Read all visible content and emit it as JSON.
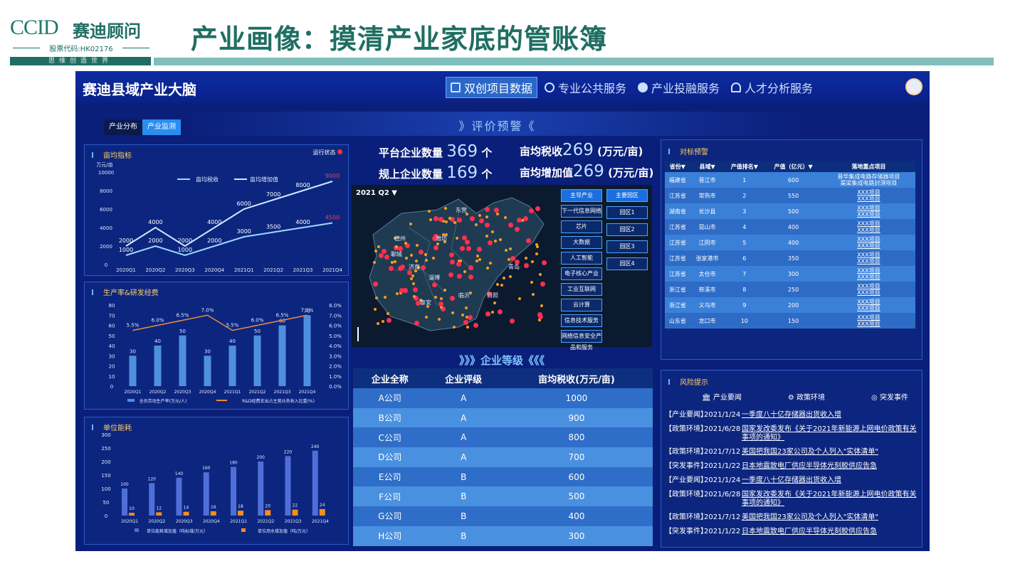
{
  "brand": {
    "logo": "CCID",
    "name_cn": "赛迪顾问",
    "stock": "股票代码:HK02176",
    "slogan": "思维创造世界"
  },
  "slide_title": "产业画像：摸清产业家底的管账簿",
  "dashboard": {
    "title": "赛迪县域产业大脑",
    "nav": [
      {
        "label": "双创项目数据",
        "icon": "book-icon",
        "active": true
      },
      {
        "label": "专业公共服务",
        "icon": "bulb-icon"
      },
      {
        "label": "产业投融服务",
        "icon": "pie-icon"
      },
      {
        "label": "人才分析服务",
        "icon": "user-icon"
      }
    ],
    "tabs": [
      {
        "label": "产业分布"
      },
      {
        "label": "产业监测",
        "active": true
      }
    ],
    "section_warning": "》评价预警《",
    "kpis": [
      {
        "label": "平台企业数量",
        "value": "369",
        "unit": "个"
      },
      {
        "label": "亩均税收",
        "value": "269",
        "unit": "(万元/亩)"
      },
      {
        "label": "规上企业数量",
        "value": "169",
        "unit": "个"
      },
      {
        "label": "亩均增加值",
        "value": "269",
        "unit": "(万元/亩)"
      }
    ],
    "map": {
      "quarter": "2021 Q2 ▼",
      "buttons_left": [
        "主导产业",
        "下一代信息网络",
        "芯片",
        "大数据",
        "人工智能",
        "电子核心产业",
        "工业互联网",
        "云计算",
        "信息技术服务",
        "网络信息安全产品和服务"
      ],
      "buttons_right": [
        "主要园区",
        "园区1",
        "园区2",
        "园区3",
        "园区4"
      ],
      "cities": [
        "东营",
        "潍坊",
        "济南",
        "淄博",
        "临沂",
        "日照",
        "青岛",
        "泰安",
        "聊城",
        "德州"
      ]
    },
    "enterprise": {
      "title": "》》》企业等级《《《",
      "headers": [
        "企业全称",
        "企业评级",
        "亩均税收(万元/亩)"
      ],
      "rows": [
        [
          "A公司",
          "A",
          "1000"
        ],
        [
          "B公司",
          "A",
          "900"
        ],
        [
          "C公司",
          "A",
          "800"
        ],
        [
          "D公司",
          "A",
          "700"
        ],
        [
          "E公司",
          "B",
          "600"
        ],
        [
          "F公司",
          "B",
          "500"
        ],
        [
          "G公司",
          "B",
          "400"
        ],
        [
          "H公司",
          "B",
          "300"
        ]
      ]
    },
    "benchmark": {
      "title": "对标预警",
      "headers": [
        "省份▼",
        "县域▼",
        "产值排名▼",
        "产值（亿元）▼",
        "落地重点项目"
      ],
      "rows": [
        [
          "福建省",
          "晋江市",
          "1",
          "600",
          "晋华集成电路存储器项目\n渠梁集成电路封测项目"
        ],
        [
          "江苏省",
          "常熟市",
          "2",
          "550",
          "XXX项目\nXXX项目"
        ],
        [
          "湖南省",
          "长沙县",
          "3",
          "500",
          "XXX项目\nXXX项目"
        ],
        [
          "江苏省",
          "昆山市",
          "4",
          "400",
          "XXX项目\nXXX项目"
        ],
        [
          "江苏省",
          "江阴市",
          "5",
          "400",
          "XXX项目\nXXX项目"
        ],
        [
          "江苏省",
          "张家港市",
          "6",
          "350",
          "XXX项目\nXXX项目"
        ],
        [
          "江苏省",
          "太仓市",
          "7",
          "300",
          "XXX项目\nXXX项目"
        ],
        [
          "浙江省",
          "慈溪市",
          "8",
          "250",
          "XXX项目\nXXX项目"
        ],
        [
          "浙江省",
          "义乌市",
          "9",
          "200",
          "XXX项目\nXXX项目"
        ],
        [
          "山东省",
          "龙口市",
          "10",
          "150",
          "XXX项目\nXXX项目"
        ]
      ],
      "highlight_row": 4
    },
    "risk": {
      "title": "风险提示",
      "categories": [
        "产业要闻",
        "政策环境",
        "突发事件"
      ],
      "items": [
        {
          "cat": "【产业要闻】",
          "date": "2021/1/24",
          "text": "一季度八十亿存储器出货收入增"
        },
        {
          "cat": "【政策环境】",
          "date": "2021/6/28",
          "text": "国家发改委发布《关于2021年新能源上网电价政策有关事项的通知》"
        },
        {
          "cat": "【政策环境】",
          "date": "2021/7/12",
          "text": "美国把我国23家公司及个人列入\"实体清单\""
        },
        {
          "cat": "【突发事件】",
          "date": "2021/1/22",
          "text": "日本地震致电厂供应半导体光刻胶供应告急"
        },
        {
          "cat": "【产业要闻】",
          "date": "2021/1/24",
          "text": "一季度八十亿存储器出货收入增"
        },
        {
          "cat": "【政策环境】",
          "date": "2021/6/28",
          "text": "国家发改委发布《关于2021年新能源上网电价政策有关事项的通知》"
        },
        {
          "cat": "【政策环境】",
          "date": "2021/7/12",
          "text": "美国把我国23家公司及个人列入\"实体清单\""
        },
        {
          "cat": "【突发事件】",
          "date": "2021/1/22",
          "text": "日本地震致电厂供应半导体光刻胶供应告急"
        }
      ]
    }
  },
  "chart_data": [
    {
      "type": "line",
      "title": "亩均指标",
      "status": "运行状态",
      "ylabel": "万元/亩",
      "ylim": [
        0,
        10000
      ],
      "categories": [
        "2020Q1",
        "2020Q2",
        "2020Q3",
        "2020Q4",
        "2021Q1",
        "2021Q2",
        "2021Q3",
        "2021Q4"
      ],
      "yticks": [
        "10000",
        "8000",
        "6000",
        "4000",
        "2000",
        "0"
      ],
      "series": [
        {
          "name": "亩均税收",
          "values": [
            1000,
            2000,
            1000,
            2000,
            3000,
            3500,
            4000,
            4500
          ],
          "labels": [
            "1000",
            "2000",
            "1000",
            "2000",
            "3000",
            "3500",
            "4000",
            "4500"
          ]
        },
        {
          "name": "亩均增加值",
          "values": [
            2000,
            4000,
            2000,
            4000,
            6000,
            7000,
            8000,
            9000
          ],
          "labels": [
            "2000",
            "4000",
            "2000",
            "4000",
            "6000",
            "7000",
            "8000",
            "9000"
          ]
        }
      ]
    },
    {
      "type": "bar",
      "title": "生产率&研发经费",
      "categories": [
        "2020Q1",
        "2020Q2",
        "2020Q3",
        "2020Q4",
        "2021Q1",
        "2021Q2",
        "2021Q3",
        "2021Q4"
      ],
      "yticks": [
        "80",
        "70",
        "60",
        "50",
        "40",
        "30",
        "20",
        "10",
        "0"
      ],
      "yticks_right": [
        "8.0%",
        "7.0%",
        "6.0%",
        "5.0%",
        "4.0%",
        "3.0%",
        "2.0%",
        "1.0%",
        "0.0%"
      ],
      "series": [
        {
          "name": "全员劳动生产率(万元/人)",
          "values": [
            30,
            40,
            50,
            30,
            40,
            50,
            60,
            70
          ],
          "labels": [
            "30",
            "40",
            "50",
            "30",
            "40",
            "50",
            "60",
            "70"
          ]
        },
        {
          "name": "R&D经费支出占主营业务收入比重(%)",
          "values": [
            5.5,
            6.0,
            6.5,
            7.0,
            5.5,
            6.0,
            6.5,
            7.0
          ],
          "labels": [
            "5.5%",
            "6.0%",
            "6.5%",
            "7.0%",
            "5.5%",
            "6.0%",
            "6.5%",
            "7.0%"
          ]
        }
      ]
    },
    {
      "type": "bar",
      "title": "单位能耗",
      "categories": [
        "2020Q1",
        "2020Q2",
        "2020Q3",
        "2020Q4",
        "2021Q1",
        "2021Q2",
        "2021Q3",
        "2021Q4"
      ],
      "yticks": [
        "300",
        "250",
        "200",
        "150",
        "100",
        "50",
        "0"
      ],
      "series": [
        {
          "name": "单位能耗增加值（吨标煤/万元）",
          "values": [
            100,
            120,
            140,
            160,
            180,
            200,
            220,
            240
          ]
        },
        {
          "name": "单位用水增加值（吨/万元）",
          "values": [
            10,
            12,
            14,
            16,
            18,
            20,
            22,
            24
          ]
        }
      ]
    }
  ],
  "colors": {
    "slide_green": "#1f6e63",
    "dash_bg": "#0a1f7a",
    "line_light": "#9fd7ff",
    "bar_blue": "#4f8fdf",
    "line_orange": "#f08a3a",
    "bar_orange": "#ff8c1a",
    "alert_red": "#ff3d3d"
  }
}
